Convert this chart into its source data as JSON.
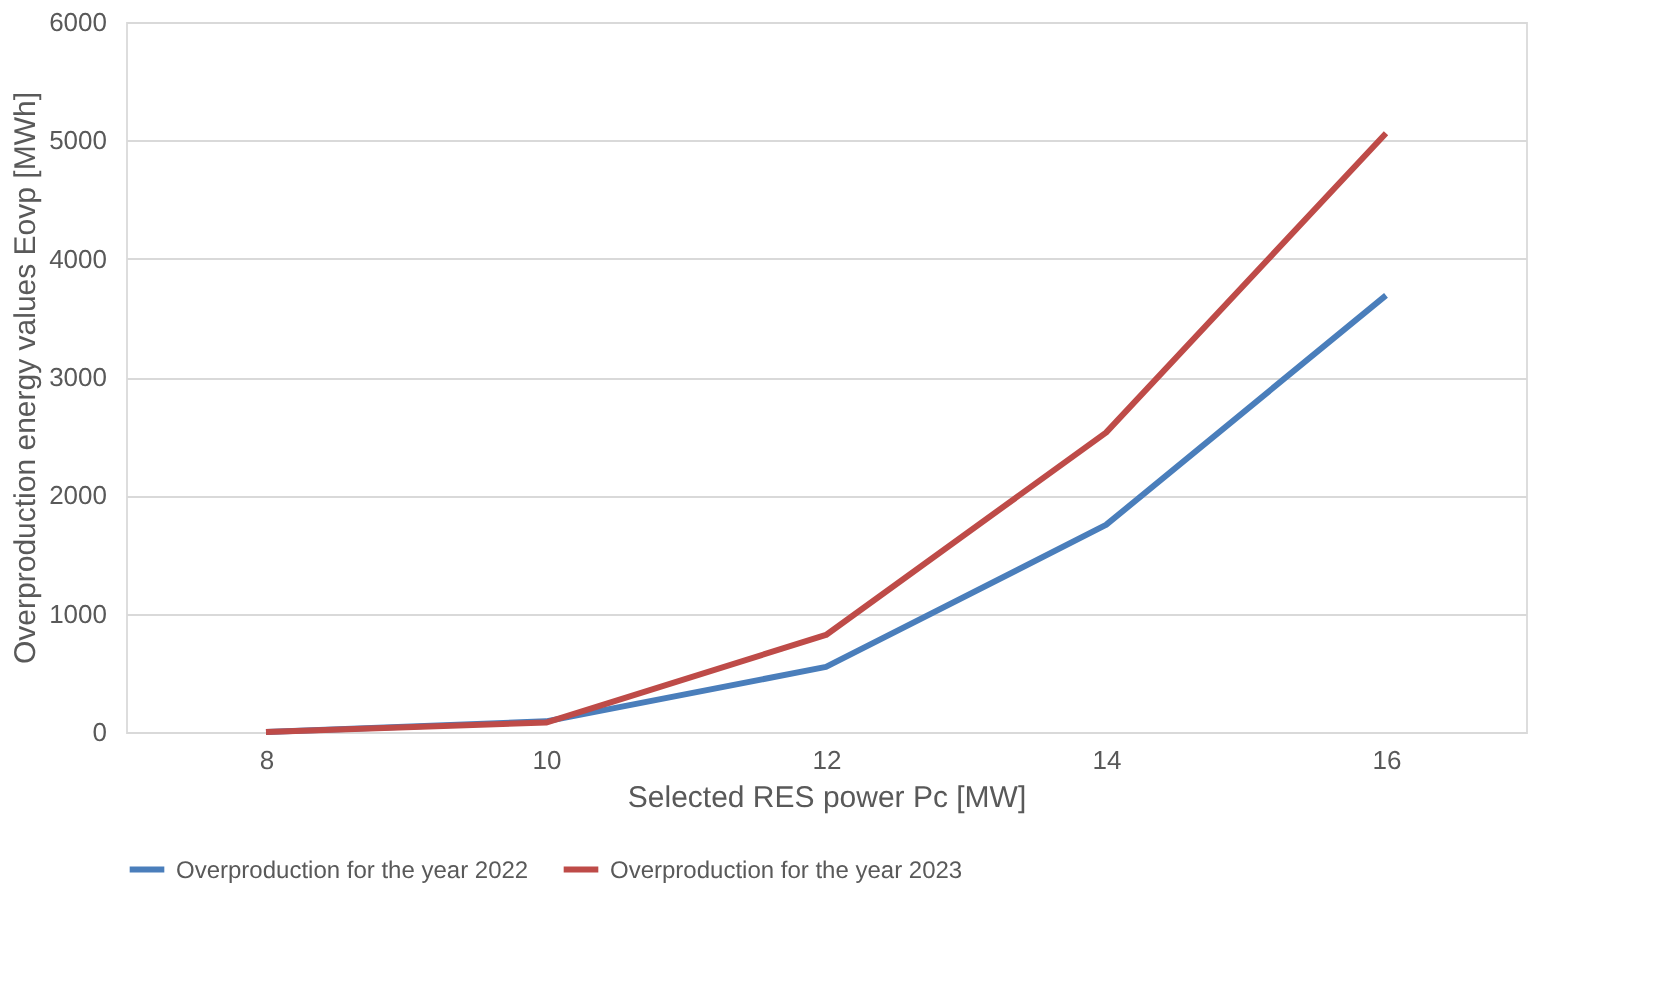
{
  "chart_data": {
    "type": "line",
    "xlabel": "Selected RES power Pc [MW]",
    "ylabel": "Overproduction energy values Eovp [MWh]",
    "categories": [
      "8",
      "10",
      "12",
      "14",
      "16"
    ],
    "series": [
      {
        "name": "Overproduction for the year 2022",
        "color": "#4a7ebb",
        "values": [
          0,
          90,
          550,
          1750,
          3690
        ]
      },
      {
        "name": "Overproduction for the year 2023",
        "color": "#be4b48",
        "values": [
          0,
          80,
          820,
          2530,
          5060
        ]
      }
    ],
    "ylim": [
      0,
      6000
    ],
    "yticks": [
      0,
      1000,
      2000,
      3000,
      4000,
      5000,
      6000
    ],
    "grid": "y",
    "legend": "bottom",
    "marker": "none",
    "line_style": "solid"
  }
}
